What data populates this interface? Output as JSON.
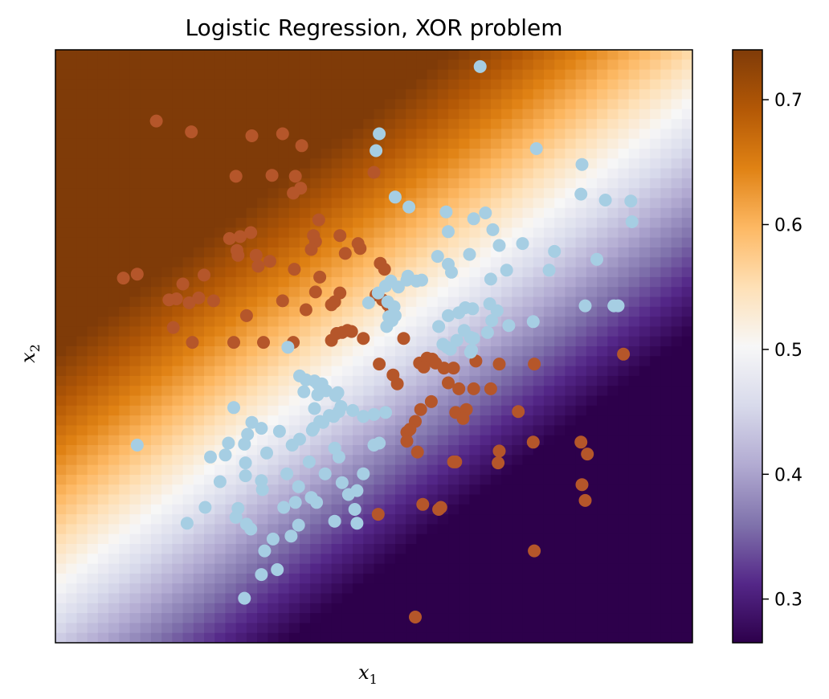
{
  "chart_data": {
    "type": "scatter",
    "title": "Logistic Regression, XOR problem",
    "xlabel": "x",
    "xlabel_sub": "1",
    "ylabel": "x",
    "ylabel_sub": "2",
    "xlim": [
      -3,
      3
    ],
    "ylim": [
      -3,
      3
    ],
    "show_axis_ticks": false,
    "grid": false,
    "background": {
      "kind": "probability_heatmap",
      "colormap": "PuOr_r",
      "resolution": 60,
      "model": {
        "intercept": 0.0,
        "w_x1": -0.36,
        "w_x2": 0.44
      }
    },
    "colorbar": {
      "range": [
        0.265,
        0.74
      ],
      "ticks": [
        0.3,
        0.4,
        0.5,
        0.6,
        0.7
      ],
      "tick_labels": [
        "0.3",
        "0.4",
        "0.5",
        "0.6",
        "0.7"
      ]
    },
    "series": [
      {
        "color": "#b5562a",
        "points": [
          [
            -2.05,
            2.28
          ],
          [
            -1.72,
            2.17
          ],
          [
            -1.15,
            2.13
          ],
          [
            -0.86,
            2.15
          ],
          [
            -0.68,
            2.03
          ],
          [
            -1.3,
            1.72
          ],
          [
            -0.69,
            1.6
          ],
          [
            -0.74,
            1.72
          ],
          [
            -0.96,
            1.73
          ],
          [
            0.0,
            1.76
          ],
          [
            -0.76,
            1.55
          ],
          [
            -1.16,
            1.15
          ],
          [
            -1.26,
            1.11
          ],
          [
            -1.29,
            0.97
          ],
          [
            -1.36,
            1.09
          ],
          [
            -1.11,
            0.92
          ],
          [
            -1.28,
            0.92
          ],
          [
            -0.98,
            0.86
          ],
          [
            -1.09,
            0.81
          ],
          [
            -0.57,
            1.12
          ],
          [
            -0.52,
            1.28
          ],
          [
            -0.55,
            1.06
          ],
          [
            -0.59,
            0.98
          ],
          [
            -0.32,
            1.12
          ],
          [
            -2.23,
            0.73
          ],
          [
            -2.36,
            0.69
          ],
          [
            -1.6,
            0.72
          ],
          [
            -1.8,
            0.63
          ],
          [
            -1.74,
            0.44
          ],
          [
            -1.86,
            0.48
          ],
          [
            -1.93,
            0.47
          ],
          [
            -1.51,
            0.46
          ],
          [
            -1.65,
            0.49
          ],
          [
            -0.75,
            0.78
          ],
          [
            -0.51,
            0.7
          ],
          [
            -0.55,
            0.55
          ],
          [
            -0.32,
            0.54
          ],
          [
            -0.86,
            0.46
          ],
          [
            -0.4,
            0.42
          ],
          [
            -0.37,
            0.45
          ],
          [
            -0.64,
            0.37
          ],
          [
            -1.2,
            0.31
          ],
          [
            -1.89,
            0.19
          ],
          [
            -1.71,
            0.04
          ],
          [
            -1.32,
            0.04
          ],
          [
            -1.04,
            0.04
          ],
          [
            -0.76,
            0.04
          ],
          [
            -0.4,
            0.06
          ],
          [
            -0.3,
            0.14
          ],
          [
            -0.35,
            0.13
          ],
          [
            -0.25,
            0.16
          ],
          [
            -0.21,
            0.15
          ],
          [
            -0.1,
            0.08
          ],
          [
            0.06,
            0.84
          ],
          [
            0.1,
            0.78
          ],
          [
            -0.27,
            0.94
          ],
          [
            -0.13,
            0.99
          ],
          [
            0.02,
            0.52
          ],
          [
            -0.15,
            1.04
          ],
          [
            0.13,
            0.42
          ],
          [
            0.16,
            0.34
          ],
          [
            0.08,
            0.47
          ],
          [
            0.28,
            0.08
          ],
          [
            0.05,
            -0.18
          ],
          [
            0.18,
            -0.29
          ],
          [
            0.22,
            -0.38
          ],
          [
            0.5,
            -0.12
          ],
          [
            0.43,
            -0.17
          ],
          [
            0.47,
            -0.21
          ],
          [
            0.55,
            -0.13
          ],
          [
            0.58,
            -0.17
          ],
          [
            0.7,
            -0.37
          ],
          [
            0.66,
            -0.22
          ],
          [
            0.75,
            -0.22
          ],
          [
            0.96,
            -0.15
          ],
          [
            1.18,
            -0.18
          ],
          [
            1.51,
            -0.18
          ],
          [
            0.94,
            -0.43
          ],
          [
            0.8,
            -0.43
          ],
          [
            0.54,
            -0.56
          ],
          [
            0.44,
            -0.64
          ],
          [
            0.39,
            -0.76
          ],
          [
            0.31,
            -0.87
          ],
          [
            0.34,
            -0.84
          ],
          [
            0.31,
            -0.96
          ],
          [
            0.41,
            -1.07
          ],
          [
            0.77,
            -0.67
          ],
          [
            0.87,
            -0.64
          ],
          [
            0.84,
            -0.73
          ],
          [
            1.1,
            -0.43
          ],
          [
            1.36,
            -0.66
          ],
          [
            1.18,
            -1.06
          ],
          [
            1.17,
            -1.18
          ],
          [
            0.77,
            -1.17
          ],
          [
            0.75,
            -1.17
          ],
          [
            1.5,
            -0.97
          ],
          [
            1.95,
            -0.97
          ],
          [
            2.01,
            -1.09
          ],
          [
            1.96,
            -1.4
          ],
          [
            1.99,
            -1.56
          ],
          [
            0.63,
            -1.63
          ],
          [
            0.61,
            -1.65
          ],
          [
            0.46,
            -1.6
          ],
          [
            0.04,
            -1.7
          ],
          [
            1.51,
            -2.07
          ],
          [
            0.39,
            -2.74
          ],
          [
            2.35,
            -0.08
          ]
        ]
      },
      {
        "color": "#a6cee3",
        "points": [
          [
            0.2,
            1.51
          ],
          [
            0.33,
            1.41
          ],
          [
            0.68,
            1.36
          ],
          [
            0.02,
            1.98
          ],
          [
            1.96,
            1.84
          ],
          [
            1.53,
            2.0
          ],
          [
            1.95,
            1.54
          ],
          [
            2.18,
            1.48
          ],
          [
            2.43,
            1.26
          ],
          [
            2.42,
            1.47
          ],
          [
            1.12,
            1.18
          ],
          [
            0.94,
            1.29
          ],
          [
            1.05,
            1.35
          ],
          [
            0.7,
            1.16
          ],
          [
            1.18,
            1.02
          ],
          [
            1.4,
            1.04
          ],
          [
            0.9,
            0.93
          ],
          [
            0.6,
            0.91
          ],
          [
            0.7,
            0.83
          ],
          [
            0.73,
            0.75
          ],
          [
            1.1,
            0.68
          ],
          [
            1.7,
            0.96
          ],
          [
            1.25,
            0.77
          ],
          [
            1.65,
            0.77
          ],
          [
            2.1,
            0.88
          ],
          [
            2.3,
            0.41
          ],
          [
            1.99,
            0.41
          ],
          [
            2.26,
            0.41
          ],
          [
            0.45,
            0.67
          ],
          [
            0.4,
            0.66
          ],
          [
            0.31,
            0.67
          ],
          [
            0.32,
            0.71
          ],
          [
            0.23,
            0.6
          ],
          [
            0.16,
            0.66
          ],
          [
            0.11,
            0.61
          ],
          [
            0.04,
            0.54
          ],
          [
            -0.05,
            0.44
          ],
          [
            0.13,
            0.45
          ],
          [
            0.19,
            0.4
          ],
          [
            0.2,
            0.31
          ],
          [
            0.17,
            0.26
          ],
          [
            0.12,
            0.2
          ],
          [
            0.14,
            0.3
          ],
          [
            0.7,
            0.31
          ],
          [
            0.8,
            0.34
          ],
          [
            0.86,
            0.39
          ],
          [
            0.93,
            0.38
          ],
          [
            1.16,
            0.36
          ],
          [
            0.61,
            0.2
          ],
          [
            0.85,
            0.16
          ],
          [
            1.07,
            0.14
          ],
          [
            0.91,
            0.09
          ],
          [
            0.72,
            -0.03
          ],
          [
            0.69,
            -0.01
          ],
          [
            0.65,
            0.02
          ],
          [
            0.92,
            -0.04
          ],
          [
            0.91,
            -0.06
          ],
          [
            0.78,
            0.06
          ],
          [
            0.94,
            0.08
          ],
          [
            1.27,
            0.21
          ],
          [
            1.11,
            0.26
          ],
          [
            1.09,
            0.43
          ],
          [
            1.5,
            0.25
          ],
          [
            -0.81,
            -0.01
          ],
          [
            -0.7,
            -0.3
          ],
          [
            -0.64,
            -0.34
          ],
          [
            -0.56,
            -0.35
          ],
          [
            -0.49,
            -0.38
          ],
          [
            -0.45,
            -0.45
          ],
          [
            -0.34,
            -0.47
          ],
          [
            -0.36,
            -0.5
          ],
          [
            -0.31,
            -0.61
          ],
          [
            -0.33,
            -0.66
          ],
          [
            -0.38,
            -0.71
          ],
          [
            -0.42,
            -0.7
          ],
          [
            -0.51,
            -0.76
          ],
          [
            -0.48,
            -0.77
          ],
          [
            -0.57,
            -0.83
          ],
          [
            -0.58,
            -0.85
          ],
          [
            -0.89,
            -0.86
          ],
          [
            -0.7,
            -0.94
          ],
          [
            -0.77,
            -1.0
          ],
          [
            -1.01,
            -1.08
          ],
          [
            -1.22,
            -0.99
          ],
          [
            -1.37,
            -0.98
          ],
          [
            -1.4,
            -1.1
          ],
          [
            -1.54,
            -1.12
          ],
          [
            -1.32,
            -0.62
          ],
          [
            -1.06,
            -0.83
          ],
          [
            -1.15,
            -0.77
          ],
          [
            -1.19,
            -0.89
          ],
          [
            -0.61,
            -1.17
          ],
          [
            -0.46,
            -1.29
          ],
          [
            -0.24,
            -1.5
          ],
          [
            -0.1,
            -1.29
          ],
          [
            0.0,
            -1.0
          ],
          [
            0.05,
            -0.98
          ],
          [
            0.11,
            -0.67
          ],
          [
            0.0,
            -0.69
          ],
          [
            -0.2,
            -0.65
          ],
          [
            -0.1,
            -0.71
          ],
          [
            -0.37,
            -1.03
          ],
          [
            -0.33,
            -1.12
          ],
          [
            -0.53,
            -0.38
          ],
          [
            -0.53,
            -0.49
          ],
          [
            -0.66,
            -0.46
          ],
          [
            -0.56,
            -0.63
          ],
          [
            -1.59,
            -1.63
          ],
          [
            -1.45,
            -1.37
          ],
          [
            -1.76,
            -1.79
          ],
          [
            -0.71,
            -1.81
          ],
          [
            -0.78,
            -1.92
          ],
          [
            -0.95,
            -1.95
          ],
          [
            -1.16,
            -1.85
          ],
          [
            -1.2,
            -1.8
          ],
          [
            -1.03,
            -2.07
          ],
          [
            -1.06,
            -2.31
          ],
          [
            -0.85,
            -1.63
          ],
          [
            -0.74,
            -1.58
          ],
          [
            -0.59,
            -1.53
          ],
          [
            -0.54,
            -1.58
          ],
          [
            -0.18,
            -1.65
          ],
          [
            -0.16,
            -1.79
          ],
          [
            -0.37,
            -1.77
          ],
          [
            -0.3,
            -1.38
          ],
          [
            -0.16,
            -1.46
          ],
          [
            -1.05,
            -1.45
          ],
          [
            -1.28,
            -1.64
          ],
          [
            -2.23,
            -1.0
          ],
          [
            -0.91,
            -2.26
          ],
          [
            -1.3,
            -1.73
          ],
          [
            -1.22,
            -2.55
          ],
          [
            -1.21,
            -1.31
          ],
          [
            -1.21,
            -1.18
          ],
          [
            -1.06,
            -1.36
          ],
          [
            -0.71,
            -1.42
          ],
          [
            -0.82,
            -1.29
          ],
          [
            1.0,
            2.83
          ],
          [
            0.05,
            2.15
          ]
        ]
      }
    ]
  }
}
